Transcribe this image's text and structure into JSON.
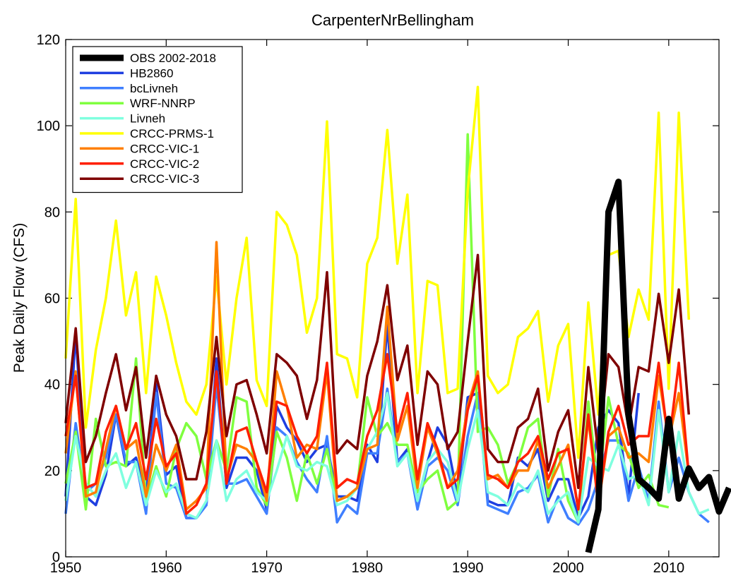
{
  "chart_data": {
    "type": "line",
    "title": "CarpenterNrBellingham",
    "xlabel": "",
    "ylabel": "Peak Daily Flow (CFS)",
    "xlim": [
      1950,
      2015
    ],
    "ylim": [
      0,
      120
    ],
    "xticks": [
      1950,
      1960,
      1970,
      1980,
      1990,
      2000,
      2010
    ],
    "yticks": [
      0,
      20,
      40,
      60,
      80,
      100,
      120
    ],
    "grid": false,
    "legend_position": "top-left",
    "series": [
      {
        "name": "OBS 2002-2018",
        "color": "#000000",
        "width": 9,
        "x_start": 2002,
        "values": [
          1,
          11,
          80,
          87,
          33,
          18,
          16,
          13.5,
          32,
          13.5,
          20.5,
          16,
          18.5,
          10.5,
          16
        ]
      },
      {
        "name": "HB2860",
        "color": "#1f3fe0",
        "width": 3.5,
        "x_start": 1950,
        "values": [
          14,
          52,
          14,
          12,
          19,
          33,
          21,
          23,
          14,
          40,
          19,
          21,
          9,
          9,
          12,
          46,
          16,
          23,
          23,
          20,
          11,
          35,
          30,
          27,
          22,
          25,
          26,
          14,
          14,
          13,
          26,
          22,
          54,
          22,
          25,
          13,
          22,
          30,
          26,
          14,
          37,
          38,
          13,
          12,
          12,
          23,
          21,
          25,
          13,
          18,
          18,
          9,
          14,
          30,
          34,
          31,
          14,
          38
        ]
      },
      {
        "name": "bcLivneh",
        "color": "#3f7fff",
        "width": 3.5,
        "x_start": 1950,
        "values": [
          10,
          31,
          15,
          17,
          23,
          33,
          22,
          22,
          10,
          38,
          17,
          16,
          9,
          9,
          12,
          40,
          17,
          17,
          18,
          14,
          10,
          30,
          28,
          22,
          18,
          15,
          28,
          8,
          12,
          10,
          24,
          24,
          39,
          22,
          24,
          11,
          21,
          23,
          20,
          12,
          28,
          38,
          12,
          11,
          10,
          15,
          16,
          19,
          8,
          14,
          9,
          7.5,
          11,
          18,
          27,
          27,
          13,
          21,
          13,
          36,
          15,
          23,
          15,
          10,
          8
        ]
      },
      {
        "name": "WRF-NNRP",
        "color": "#7fff3f",
        "width": 3.5,
        "x_start": 1950,
        "values": [
          17,
          29,
          11,
          32,
          21,
          22,
          21,
          46,
          13,
          21,
          14,
          25,
          31,
          28,
          18,
          27,
          20,
          37,
          36,
          16,
          12,
          29,
          23,
          13,
          24,
          17,
          25,
          13,
          14,
          16,
          37,
          28,
          31,
          26,
          26,
          15,
          18,
          20,
          11,
          13,
          98,
          29,
          30,
          26,
          17,
          22,
          30,
          32,
          14,
          25,
          13,
          8,
          36,
          16,
          37,
          26,
          24,
          16,
          19,
          12,
          11.5
        ]
      },
      {
        "name": "Livneh",
        "color": "#7fffdf",
        "width": 3.5,
        "x_start": 1950,
        "values": [
          13,
          28,
          17,
          14,
          20,
          24,
          16,
          22,
          12,
          20,
          15,
          17,
          10,
          9,
          13,
          27,
          13,
          18,
          20,
          15,
          13,
          20,
          28,
          21,
          20,
          22,
          21,
          12,
          13,
          16,
          25,
          29,
          38,
          21,
          24,
          13,
          22,
          25,
          22,
          13,
          25,
          34,
          15,
          14,
          12,
          17,
          15,
          20,
          10,
          13,
          15,
          8,
          23,
          21,
          20,
          26,
          18,
          19,
          12,
          34,
          15,
          29,
          15,
          10,
          11
        ]
      },
      {
        "name": "CRCC-PRMS-1",
        "color": "#ffff00",
        "width": 3.5,
        "x_start": 1950,
        "values": [
          46,
          83,
          30,
          48,
          60,
          78,
          56,
          66,
          38,
          65,
          56,
          45,
          36,
          33,
          40,
          65,
          40,
          60,
          74,
          41,
          35,
          80,
          77,
          70,
          52,
          60,
          101,
          47,
          46,
          37,
          68,
          74,
          99,
          68,
          84,
          38,
          64,
          63,
          38,
          39,
          85,
          109,
          42,
          38,
          40,
          51,
          53,
          57,
          36,
          49,
          54,
          23,
          59,
          33,
          70,
          71,
          51,
          62,
          55,
          103,
          39,
          103,
          55
        ]
      },
      {
        "name": "CRCC-VIC-1",
        "color": "#ff7f00",
        "width": 3.5,
        "x_start": 1950,
        "values": [
          24,
          43,
          14,
          15,
          25,
          35,
          25,
          27,
          14,
          26,
          20,
          26,
          11,
          13,
          16,
          73,
          18,
          26,
          25,
          22,
          13,
          43,
          35,
          23,
          26,
          25,
          43,
          13,
          14,
          16,
          25,
          26,
          58,
          27,
          35,
          16,
          30,
          24,
          16,
          20,
          35,
          43,
          18,
          19,
          16,
          20,
          20,
          27,
          16,
          21,
          26,
          11,
          32,
          12,
          28,
          30,
          23,
          24,
          22,
          42,
          27,
          38,
          19
        ]
      },
      {
        "name": "CRCC-VIC-2",
        "color": "#ff1f00",
        "width": 3.5,
        "x_start": 1950,
        "values": [
          28,
          42,
          16,
          17,
          29,
          35,
          25,
          31,
          18,
          32,
          21,
          24,
          10,
          12,
          17,
          43,
          17,
          29,
          30,
          22,
          15,
          36,
          35,
          28,
          24,
          28,
          45,
          16,
          18,
          17,
          28,
          34,
          47,
          29,
          38,
          18,
          31,
          25,
          16,
          18,
          34,
          42,
          19,
          18,
          16,
          22,
          24,
          28,
          18,
          24,
          25,
          11,
          33,
          12,
          29,
          35,
          26,
          28,
          28,
          45,
          26,
          45,
          19
        ]
      },
      {
        "name": "CRCC-VIC-3",
        "color": "#7f0000",
        "width": 3.5,
        "x_start": 1950,
        "values": [
          31,
          53,
          22,
          28,
          38,
          47,
          34,
          44,
          23,
          42,
          33,
          28,
          18,
          18,
          29,
          51,
          28,
          40,
          41,
          33,
          24,
          47,
          45,
          42,
          32,
          41,
          66,
          24,
          27,
          25,
          42,
          50,
          63,
          41,
          49,
          26,
          43,
          40,
          25,
          29,
          50,
          70,
          25,
          22,
          22,
          30,
          32,
          39,
          20,
          29,
          34,
          16,
          44,
          24,
          47,
          44,
          30,
          44,
          43,
          61,
          45,
          62,
          33
        ]
      }
    ]
  }
}
